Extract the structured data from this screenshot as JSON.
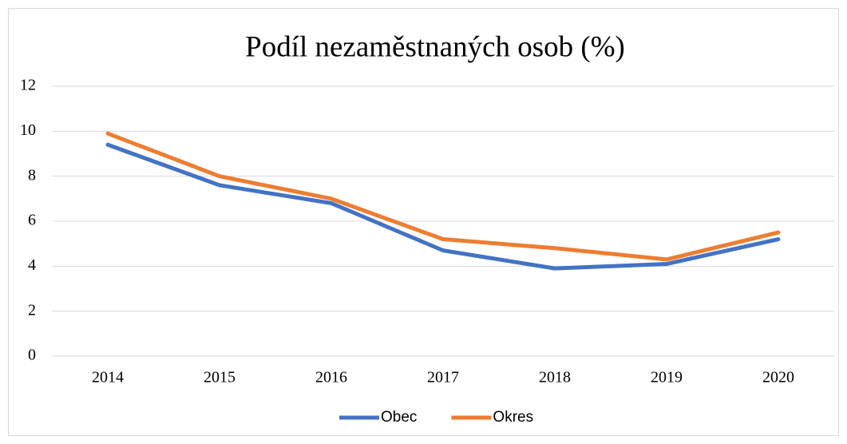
{
  "chart_data": {
    "type": "line",
    "title": "Podíl nezaměstnaných osob (%)",
    "categories": [
      "2014",
      "2015",
      "2016",
      "2017",
      "2018",
      "2019",
      "2020"
    ],
    "series": [
      {
        "name": "Obec",
        "color": "#4472c4",
        "values": [
          9.4,
          7.6,
          6.8,
          4.7,
          3.9,
          4.1,
          5.2
        ]
      },
      {
        "name": "Okres",
        "color": "#ed7d31",
        "values": [
          9.9,
          8.0,
          7.0,
          5.2,
          4.8,
          4.3,
          5.5
        ]
      }
    ],
    "ylim": [
      0,
      12
    ],
    "yticks": [
      0,
      2,
      4,
      6,
      8,
      10,
      12
    ],
    "grid": true,
    "legend": "bottom"
  }
}
